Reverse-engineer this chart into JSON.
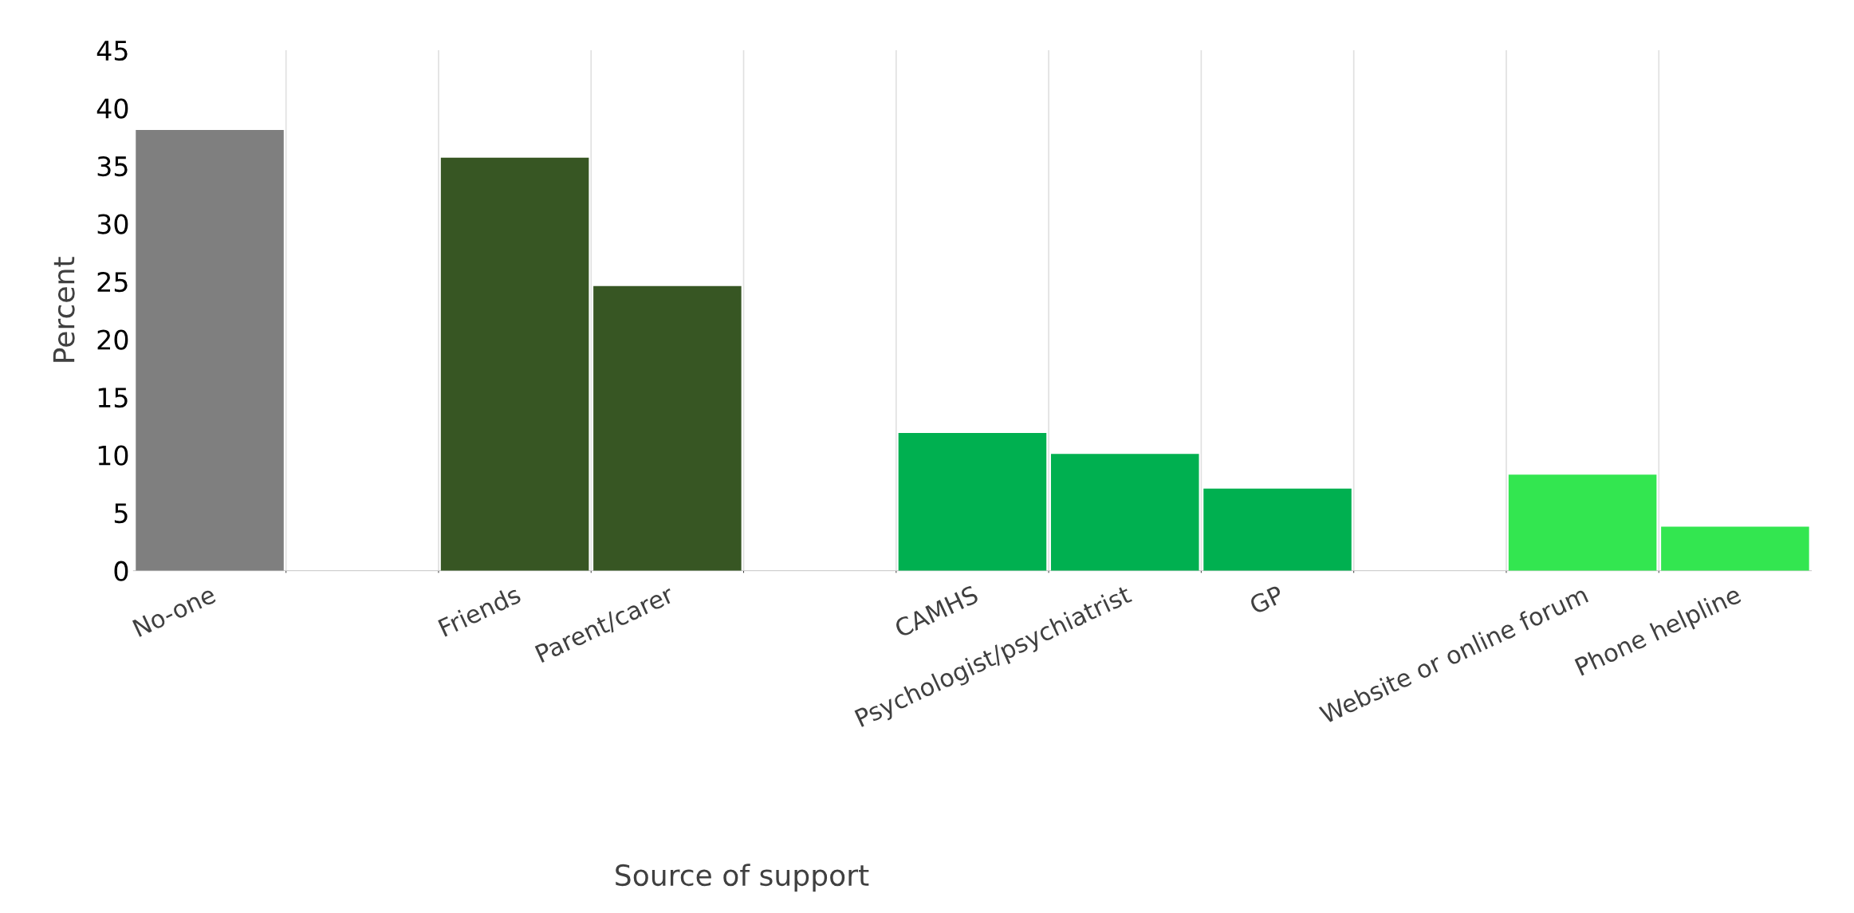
{
  "chart_data": {
    "type": "bar",
    "xlabel": "Source of support",
    "ylabel": "Percent",
    "categories": [
      "No-one",
      null,
      "Friends",
      "Parent/carer",
      null,
      "CAMHS",
      "Psychologist/psychiatrist",
      "GP",
      null,
      "Website or online forum",
      "Phone helpline"
    ],
    "values": [
      38.1,
      null,
      35.7,
      24.6,
      null,
      11.9,
      10.1,
      7.1,
      null,
      8.3,
      3.8
    ],
    "colors": [
      "#7f7f7f",
      null,
      "#375623",
      "#375623",
      null,
      "#00b050",
      "#00b050",
      "#00b050",
      null,
      "#33e650",
      "#33e650"
    ],
    "ylim": [
      0,
      45
    ],
    "yticks": [
      0,
      5,
      10,
      15,
      20,
      25,
      30,
      35,
      40,
      45
    ],
    "grid": "x",
    "legend": false
  }
}
